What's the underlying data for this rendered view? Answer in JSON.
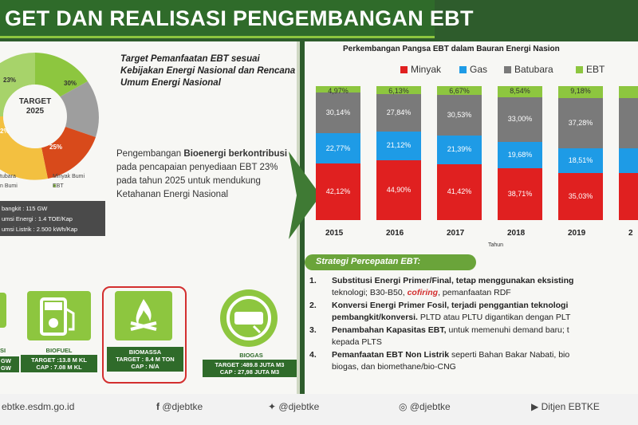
{
  "banner": {
    "title": "GET DAN REALISASI PENGEMBANGAN EBT"
  },
  "left": {
    "donut": {
      "center_label_1": "TARGET",
      "center_label_2": "2025",
      "pct_ebt": "23%",
      "pct_30": "30%",
      "pct_25": "25%",
      "pct_22": "2%",
      "colors": {
        "ebt": "#8dc63f",
        "batubara": "#9e9e9e",
        "minyak": "#d84a1b",
        "gas": "#f3c040"
      }
    },
    "legend": {
      "batubara": "tubara",
      "minyak": "Minyak Bumi",
      "gas": "n Bumi",
      "ebt": "EBT"
    },
    "stats": {
      "line1": "bangkit : 115 GW",
      "line2": "umsi Energi : 1.4 TOE/Kap",
      "line3": "umsi Listrik : 2.500 kWh/Kap"
    },
    "heading": "Target Pemanfaatan EBT sesuai Kebijakan Energi Nasional dan Rencana Umum Energi Nasional",
    "body": {
      "part1": "Pengembangan ",
      "part2": "Bioenergi berkontribusi",
      "part3": " pada pencapaian penyediaan EBT 23% pada tahun 2025 untuk mendukung Ketahanan Energi Nasional"
    },
    "cards": {
      "c0": {
        "line1": "SI",
        "line2": "GW",
        "line3": "GW"
      },
      "c1": {
        "title": "BIOFUEL",
        "line1": "TARGET :13.8 M KL",
        "line2": "CAP : 7.08 M KL"
      },
      "c2": {
        "title": "BIOMASSA",
        "line1": "TARGET : 8.4 M TON",
        "line2": "CAP : N/A"
      },
      "c3": {
        "title": "BIOGAS",
        "line1": "TARGET :489.8 JUTA M3",
        "line2": "CAP : 27,98 JUTA M3"
      }
    }
  },
  "chart_data": {
    "type": "bar",
    "title": "Perkembangan Pangsa EBT dalam Bauran Energi Nasion",
    "xlabel": "Tahun",
    "categories": [
      "2015",
      "2016",
      "2017",
      "2018",
      "2019",
      "2"
    ],
    "series": [
      {
        "name": "Minyak",
        "color": "#e02020",
        "values": [
          42.12,
          44.9,
          41.42,
          38.71,
          35.03,
          35.0
        ],
        "labels": [
          "42,12%",
          "44,90%",
          "41,42%",
          "38,71%",
          "35,03%",
          ""
        ]
      },
      {
        "name": "Gas",
        "color": "#1e9be6",
        "values": [
          22.77,
          21.12,
          21.39,
          19.68,
          18.51,
          18.5
        ],
        "labels": [
          "22,77%",
          "21,12%",
          "21,39%",
          "19,68%",
          "18,51%",
          ""
        ]
      },
      {
        "name": "Batubara",
        "color": "#7a7a7a",
        "values": [
          30.14,
          27.84,
          30.53,
          33.0,
          37.28,
          37.3
        ],
        "labels": [
          "30,14%",
          "27,84%",
          "30,53%",
          "33,00%",
          "37,28%",
          ""
        ]
      },
      {
        "name": "EBT",
        "color": "#8dc63f",
        "values": [
          4.97,
          6.13,
          6.67,
          8.54,
          9.18,
          9.2
        ],
        "labels": [
          "4,97%",
          "6,13%",
          "6,67%",
          "8,54%",
          "9,18%",
          ""
        ]
      }
    ]
  },
  "strategi": {
    "head": "Strategi Percepatan EBT:",
    "items": [
      {
        "num": "1.",
        "l1_bold": "Substitusi Energi Primer/Final, tetap menggunakan eksisting",
        "l2a": "teknologi; B30-B50, ",
        "l2b": "cofiring",
        "l2c": ", pemanfaatan RDF"
      },
      {
        "num": "2.",
        "l1_bold": "Konversi Energi Primer Fosil, terjadi penggantian teknologi",
        "l2a_bold": "pembangkit/konversi.",
        "l2b": " PLTD atau PLTU digantikan dengan PLT"
      },
      {
        "num": "3.",
        "l1_bold": "Penambahan Kapasitas EBT,",
        "l1_rest": " untuk memenuhi demand baru; t",
        "l2": "kepada PLTS"
      },
      {
        "num": "4.",
        "l1_bold": "Pemanfaatan EBT Non Listrik",
        "l1_rest": " seperti Bahan Bakar Nabati, bio",
        "l2": "biogas, dan biomethane/bio-CNG"
      }
    ]
  },
  "footer": {
    "website": "ebtke.esdm.go.id",
    "facebook": "@djebtke",
    "twitter": "@djebtke",
    "instagram": "@djebtke",
    "youtube": "Ditjen EBTKE"
  }
}
